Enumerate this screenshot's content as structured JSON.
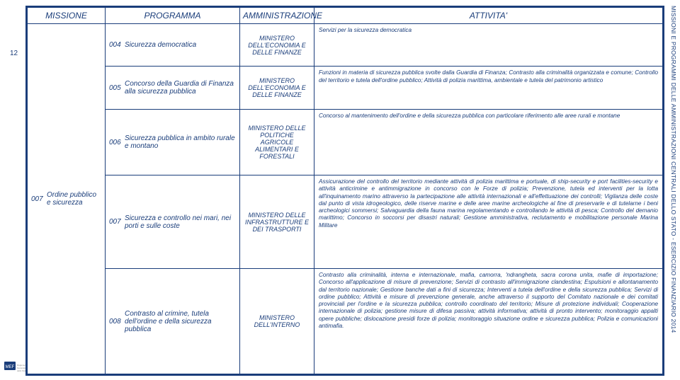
{
  "page_number": "12",
  "side_title": "MISSIONI E PROGRAMMI DELLE AMMINISTRAZIONI CENTRALI DELLO STATO - ESERCIZIO FINANZIARIO 2014",
  "colors": {
    "primary": "#1a3d7a",
    "bg": "#ffffff"
  },
  "headers": {
    "c1": "MISSIONE",
    "c2": "PROGRAMMA",
    "c3": "AMMINISTRAZIONE",
    "c4": "ATTIVITA'"
  },
  "mission": {
    "code": "007",
    "label": "Ordine pubblico e sicurezza"
  },
  "rows": [
    {
      "prog_code": "004",
      "prog_label": "Sicurezza democratica",
      "admin": "MINISTERO DELL'ECONOMIA E DELLE FINANZE",
      "act": "Servizi per la sicurezza democratica"
    },
    {
      "prog_code": "005",
      "prog_label": "Concorso della Guardia di Finanza alla sicurezza pubblica",
      "admin": "MINISTERO DELL'ECONOMIA E DELLE FINANZE",
      "act": "Funzioni in materia di sicurezza pubblica svolte dalla Guardia di Finanza; Contrasto alla criminalità organizzata e comune; Controllo del territorio e tutela dell'ordine pubblico; Attività di polizia marittima, ambientale e tutela del patrimonio artistico"
    },
    {
      "prog_code": "006",
      "prog_label": "Sicurezza pubblica in ambito rurale e montano",
      "admin": "MINISTERO DELLE POLITICHE AGRICOLE ALIMENTARI E FORESTALI",
      "act": "Concorso al mantenimento dell'ordine e della sicurezza pubblica con particolare riferimento alle aree rurali e montane"
    },
    {
      "prog_code": "007",
      "prog_label": "Sicurezza e controllo nei mari, nei porti e sulle coste",
      "admin": "MINISTERO DELLE INFRASTRUTTURE E DEI TRASPORTI",
      "act": "Assicurazione del controllo del territorio mediante attività di polizia marittima e portuale, di ship-security e port facilities-security e attività anticrimine e antimmigrazione in concorso con le Forze di polizia; Prevenzione, tutela ed interventi per la lotta all'inquinamento marino attraverso la partecipazione alle attività internazionali e all'effettuazione dei controlli; Vigilanza delle coste dal punto di vista idrogeologico, delle riserve marine e delle aree marine archeologiche al fine di preservarle e di tutelarne i beni archeologici sommersi; Salvaguardia della fauna marina regolamentando e controllando le attività di pesca; Controllo del demanio marittimo; Concorso in soccorsi per disastri naturali; Gestione amministrativa, reclutamento e mobilitazione personale Marina Militare"
    },
    {
      "prog_code": "008",
      "prog_label": "Contrasto al crimine, tutela dell'ordine e della sicurezza pubblica",
      "admin": "MINISTERO DELL'INTERNO",
      "act": "Contrasto alla criminalità, interna e internazionale, mafia, camorra, 'ndrangheta, sacra corona unita, mafie di importazione; Concorso all'applicazione di misure di prevenzione; Servizi di contrasto all'immigrazione clandestina; Espulsioni e allontanamento dal territorio nazionale; Gestione banche dati a fini di sicurezza; Interventi a tutela dell'ordine e della sicurezza pubblica; Servizi di ordine pubblico; Attività e misure di prevenzione generale, anche attraverso il supporto del Comitato nazionale e dei comitati provinciali per l'ordine e la sicurezza pubblica; controllo coordinato del territorio; Misure di protezione individuali; Cooperazione internazionale di polizia; gestione misure di difesa passiva; attività informativa; attività di pronto intervento; monitoraggio appalti opere pubbliche; dislocazione presidi forze di polizia; monitoraggio situazione ordine e sicurezza pubblica; Polizia e comunicazioni antimafia."
    }
  ]
}
